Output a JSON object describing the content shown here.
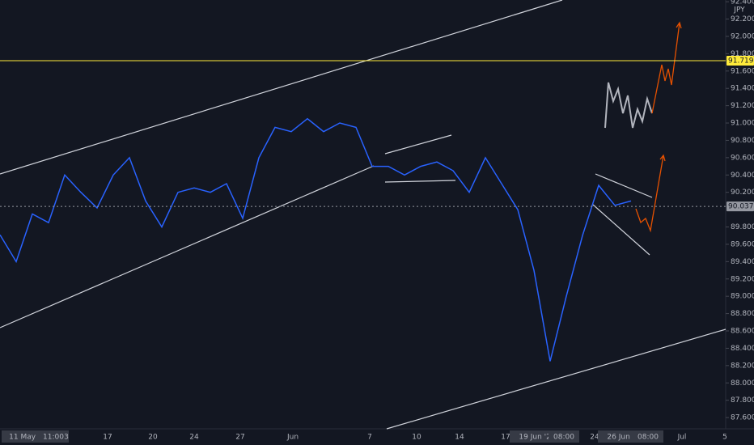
{
  "chart_data": {
    "type": "line",
    "currency": "JPY",
    "values": [
      89.71,
      89.4,
      89.95,
      89.85,
      90.4,
      90.2,
      90.02,
      90.4,
      90.6,
      90.1,
      89.8,
      90.2,
      90.25,
      90.2,
      90.3,
      89.9,
      90.6,
      90.95,
      90.9,
      91.05,
      90.9,
      91.0,
      90.95,
      90.5,
      90.5,
      90.4,
      90.5,
      90.55,
      90.45,
      90.2,
      90.6,
      90.3,
      90.0,
      89.3,
      88.25,
      89.0,
      89.7,
      90.28,
      90.05,
      90.1
    ],
    "color": "#2962ff",
    "ylim": [
      87.47,
      92.42
    ],
    "yticks": [
      {
        "value": 87.6,
        "label": "87.600"
      },
      {
        "value": 87.8,
        "label": "87.800"
      },
      {
        "value": 88.0,
        "label": "88.000"
      },
      {
        "value": 88.2,
        "label": "88.200"
      },
      {
        "value": 88.4,
        "label": "88.400"
      },
      {
        "value": 88.6,
        "label": "88.600"
      },
      {
        "value": 88.8,
        "label": "88.800"
      },
      {
        "value": 89.0,
        "label": "89.000"
      },
      {
        "value": 89.2,
        "label": "89.200"
      },
      {
        "value": 89.4,
        "label": "89.400"
      },
      {
        "value": 89.6,
        "label": "89.600"
      },
      {
        "value": 89.8,
        "label": "89.800"
      },
      {
        "value": 90.2,
        "label": "90.200"
      },
      {
        "value": 90.4,
        "label": "90.400"
      },
      {
        "value": 90.6,
        "label": "90.600"
      },
      {
        "value": 90.8,
        "label": "90.800"
      },
      {
        "value": 91.0,
        "label": "91.000"
      },
      {
        "value": 91.2,
        "label": "91.200"
      },
      {
        "value": 91.4,
        "label": "91.400"
      },
      {
        "value": 91.6,
        "label": "91.600"
      },
      {
        "value": 91.8,
        "label": "91.800"
      },
      {
        "value": 92.0,
        "label": "92.000"
      },
      {
        "value": 92.2,
        "label": "92.200"
      },
      {
        "value": 92.4,
        "label": "92.400"
      }
    ],
    "price_lines": [
      {
        "value": 91.719,
        "color": "#ffeb3b"
      },
      {
        "value": 90.037,
        "color": "#9598a1"
      }
    ],
    "x_labels": [
      "11 May '21",
      "11:00",
      "3",
      "17",
      "20",
      "24",
      "27",
      "Jun",
      "7",
      "10",
      "14",
      "17",
      "19 Jun '21",
      "08:00",
      "24",
      "26 Jun '21",
      "08:00",
      "Jul",
      "5"
    ]
  }
}
